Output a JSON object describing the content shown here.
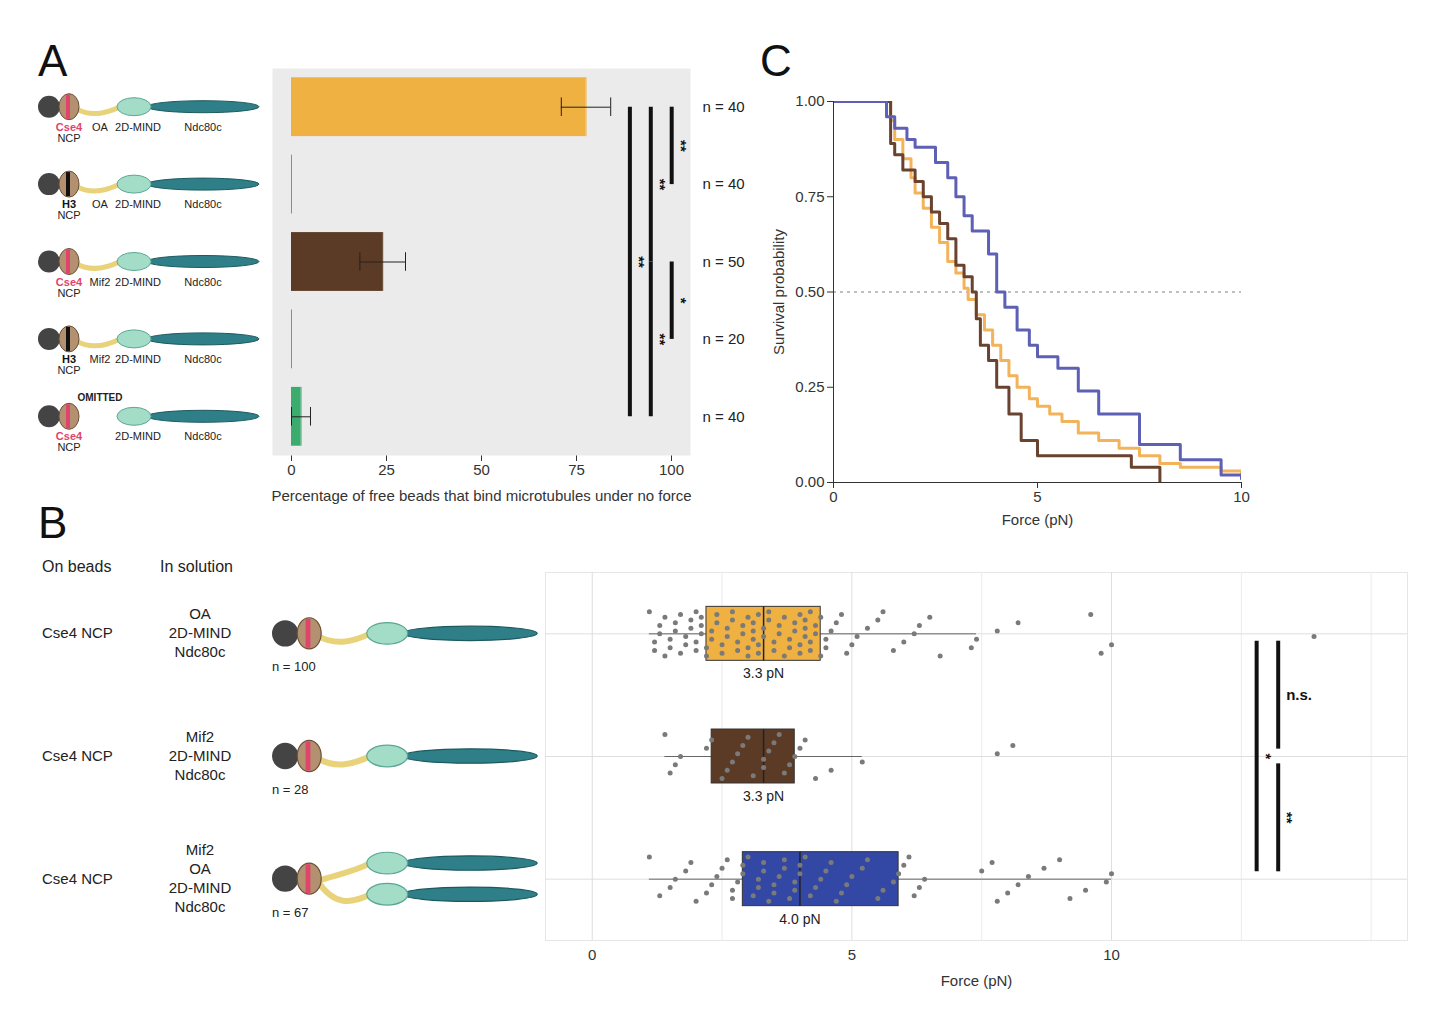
{
  "chart_data": [
    {
      "type": "bar",
      "panel": "A",
      "orientation": "horizontal",
      "cartoons": [
        {
          "ncp": "Cse4 NCP",
          "color": "#e0446c",
          "linker": "OA",
          "parts": [
            "2D-MIND",
            "Ndc80c"
          ]
        },
        {
          "ncp": "H3 NCP",
          "color": "#111111",
          "linker": "OA",
          "parts": [
            "2D-MIND",
            "Ndc80c"
          ]
        },
        {
          "ncp": "Cse4 NCP",
          "color": "#e0446c",
          "linker": "Mif2",
          "parts": [
            "2D-MIND",
            "Ndc80c"
          ]
        },
        {
          "ncp": "H3 NCP",
          "color": "#111111",
          "linker": "Mif2",
          "parts": [
            "2D-MIND",
            "Ndc80c"
          ]
        },
        {
          "ncp": "Cse4 NCP",
          "color": "#e0446c",
          "omitted": "OMITTED",
          "parts": [
            "2D-MIND",
            "Ndc80c"
          ]
        }
      ],
      "values": [
        77.5,
        0,
        24,
        0,
        2.5
      ],
      "errors": [
        6.5,
        0,
        6,
        0,
        2.5
      ],
      "colors": [
        "#f0b143",
        "#8c8c8c",
        "#5b3a26",
        "#8c8c8c",
        "#3bab6e"
      ],
      "n_labels": [
        "n = 40",
        "n = 40",
        "n = 50",
        "n = 20",
        "n = 40"
      ],
      "xlabel": "Percentage of free beads that bind microtubules under no force",
      "xlim": [
        -5,
        105
      ],
      "xticks": [
        0,
        25,
        50,
        75,
        100
      ],
      "grid": false,
      "significance": [
        {
          "from": 0,
          "to": 1,
          "label": "**"
        },
        {
          "from": 0,
          "to": 2,
          "label": "**"
        },
        {
          "from": 2,
          "to": 3,
          "label": "*"
        },
        {
          "from": 2,
          "to": 4,
          "label": "**"
        },
        {
          "from": 0,
          "to": 4,
          "label": "**"
        }
      ]
    },
    {
      "type": "box",
      "panel": "B",
      "orientation": "horizontal",
      "column_heads": [
        "On beads",
        "In solution"
      ],
      "rows": [
        {
          "on_beads": "Cse4 NCP",
          "in_solution": [
            "OA",
            "2D-MIND",
            "Ndc80c"
          ],
          "n_label": "n = 100",
          "color": "#f0b143",
          "q1": 2.2,
          "median": 3.3,
          "q3": 4.4,
          "whisker_low": 1.1,
          "whisker_high": 7.4,
          "median_label": "3.3 pN",
          "values": [
            1.1,
            1.2,
            1.2,
            1.3,
            1.3,
            1.4,
            1.4,
            1.5,
            1.5,
            1.6,
            1.6,
            1.7,
            1.7,
            1.8,
            1.8,
            1.9,
            1.9,
            2.0,
            2.0,
            2.0,
            2.1,
            2.1,
            2.1,
            2.2,
            2.2,
            2.3,
            2.3,
            2.4,
            2.4,
            2.5,
            2.5,
            2.6,
            2.6,
            2.7,
            2.7,
            2.8,
            2.8,
            2.9,
            2.9,
            3.0,
            3.0,
            3.0,
            3.1,
            3.1,
            3.1,
            3.2,
            3.2,
            3.2,
            3.3,
            3.3,
            3.4,
            3.4,
            3.5,
            3.5,
            3.6,
            3.6,
            3.7,
            3.7,
            3.8,
            3.8,
            3.9,
            3.9,
            4.0,
            4.0,
            4.0,
            4.1,
            4.1,
            4.1,
            4.2,
            4.2,
            4.2,
            4.3,
            4.3,
            4.4,
            4.4,
            4.5,
            4.5,
            4.6,
            4.7,
            4.8,
            4.9,
            5.0,
            5.1,
            5.3,
            5.5,
            5.6,
            5.8,
            6.0,
            6.2,
            6.3,
            6.5,
            6.7,
            7.3,
            7.4,
            7.8,
            8.2,
            9.6,
            9.8,
            10,
            13.9
          ]
        },
        {
          "on_beads": "Cse4 NCP",
          "in_solution": [
            "Mif2",
            "2D-MIND",
            "Ndc80c"
          ],
          "n_label": "n = 28",
          "color": "#5b3a26",
          "q1": 2.3,
          "median": 3.3,
          "q3": 3.9,
          "whisker_low": 1.4,
          "whisker_high": 5.2,
          "median_label": "3.3 pN",
          "values": [
            1.4,
            1.5,
            1.6,
            1.7,
            2.2,
            2.3,
            2.5,
            2.6,
            2.7,
            2.8,
            2.9,
            3.0,
            3.1,
            3.3,
            3.3,
            3.4,
            3.5,
            3.6,
            3.7,
            3.8,
            3.9,
            4.0,
            4.1,
            4.3,
            4.6,
            5.2,
            7.8,
            8.1
          ]
        },
        {
          "on_beads": "Cse4 NCP",
          "in_solution": [
            "Mif2",
            "OA",
            "2D-MIND",
            "Ndc80c"
          ],
          "n_label": "n = 67",
          "color": "#3347a5",
          "q1": 2.9,
          "median": 4.0,
          "q3": 5.9,
          "whisker_low": 1.1,
          "whisker_high": 10,
          "median_label": "4.0 pN",
          "values": [
            1.1,
            1.3,
            1.5,
            1.6,
            1.8,
            1.9,
            2.0,
            2.2,
            2.3,
            2.4,
            2.5,
            2.6,
            2.7,
            2.7,
            2.8,
            2.9,
            2.9,
            3.0,
            3.1,
            3.2,
            3.2,
            3.3,
            3.3,
            3.4,
            3.5,
            3.5,
            3.6,
            3.7,
            3.7,
            3.8,
            3.9,
            3.9,
            4.0,
            4.0,
            4.1,
            4.2,
            4.3,
            4.4,
            4.5,
            4.6,
            4.7,
            4.8,
            4.9,
            5.0,
            5.2,
            5.3,
            5.5,
            5.6,
            5.8,
            5.9,
            6.0,
            6.1,
            6.2,
            6.3,
            6.4,
            7.5,
            7.7,
            7.8,
            8.0,
            8.2,
            8.4,
            8.7,
            9.0,
            9.2,
            9.5,
            9.9,
            10
          ]
        }
      ],
      "xlabel": "Force (pN)",
      "xlim": [
        -0.9,
        15.7
      ],
      "xticks": [
        0,
        5,
        10
      ],
      "minor_grid": [
        2.5,
        7.5,
        12.5,
        15
      ],
      "grid": true,
      "significance": [
        {
          "from": 0,
          "to": 2,
          "label": "*"
        },
        {
          "from": 0,
          "to": 1,
          "label": "n.s."
        },
        {
          "from": 1,
          "to": 2,
          "label": "**"
        }
      ]
    },
    {
      "type": "line",
      "panel": "C",
      "line_style": "step",
      "xlabel": "Force (pN)",
      "ylabel": "Survival probability",
      "xlim": [
        0,
        10
      ],
      "xticks": [
        0,
        5,
        10
      ],
      "ylim": [
        0,
        1
      ],
      "yticks": [
        {
          "value": 0,
          "label": "0.00"
        },
        {
          "value": 0.25,
          "label": "0.25"
        },
        {
          "value": 0.5,
          "label": "0.50"
        },
        {
          "value": 0.75,
          "label": "0.75"
        },
        {
          "value": 1,
          "label": "1.00"
        }
      ],
      "reference_line": 0.5,
      "series": [
        {
          "color": "#f2b35a",
          "x": [
            0,
            1.4,
            1.5,
            1.7,
            1.9,
            2.0,
            2.2,
            2.4,
            2.6,
            2.8,
            3.0,
            3.2,
            3.3,
            3.5,
            3.7,
            3.9,
            4.1,
            4.3,
            4.5,
            4.8,
            5.0,
            5.3,
            5.6,
            6.0,
            6.5,
            7.0,
            7.5,
            8.0,
            8.5,
            9.5,
            10
          ],
          "values": [
            1.0,
            0.95,
            0.9,
            0.85,
            0.8,
            0.76,
            0.72,
            0.67,
            0.63,
            0.58,
            0.55,
            0.51,
            0.48,
            0.44,
            0.4,
            0.36,
            0.32,
            0.28,
            0.25,
            0.22,
            0.2,
            0.18,
            0.16,
            0.13,
            0.11,
            0.09,
            0.07,
            0.05,
            0.04,
            0.03,
            0.01
          ]
        },
        {
          "color": "#6a4330",
          "x": [
            0,
            1.4,
            1.5,
            1.7,
            2.0,
            2.2,
            2.4,
            2.6,
            2.8,
            3.0,
            3.2,
            3.4,
            3.5,
            3.6,
            3.8,
            4.0,
            4.3,
            4.6,
            5.0,
            7.3,
            8.0
          ],
          "values": [
            1,
            0.89,
            0.86,
            0.82,
            0.79,
            0.75,
            0.71,
            0.68,
            0.64,
            0.57,
            0.54,
            0.5,
            0.43,
            0.36,
            0.32,
            0.25,
            0.18,
            0.11,
            0.07,
            0.04,
            0
          ]
        },
        {
          "color": "#5d60b5",
          "x": [
            0,
            1.3,
            1.5,
            1.8,
            2.0,
            2.5,
            2.8,
            3.0,
            3.2,
            3.4,
            3.8,
            4.0,
            4.2,
            4.5,
            4.8,
            5.0,
            5.5,
            6.0,
            6.5,
            7.5,
            8.5,
            9.5,
            10
          ],
          "values": [
            1,
            0.96,
            0.93,
            0.9,
            0.88,
            0.84,
            0.8,
            0.75,
            0.7,
            0.66,
            0.6,
            0.5,
            0.46,
            0.4,
            0.36,
            0.33,
            0.3,
            0.24,
            0.18,
            0.1,
            0.06,
            0.02,
            0.01
          ]
        }
      ]
    }
  ]
}
